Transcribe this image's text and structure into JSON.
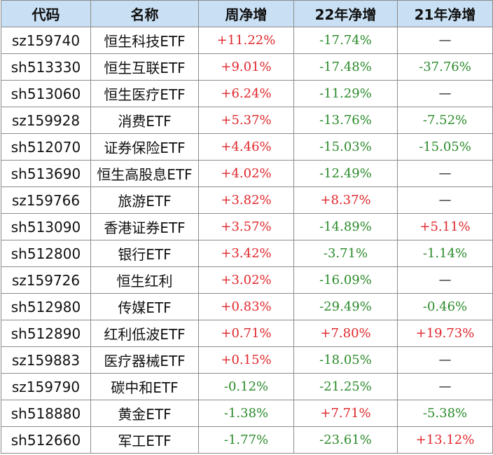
{
  "columns": [
    "代码",
    "名称",
    "周净增",
    "22年净增",
    "21年净增"
  ],
  "colors": {
    "positive": "#e0262b",
    "negative": "#2a8a2a",
    "header_bg": "#c9e0f4"
  },
  "rows": [
    {
      "code": "sz159740",
      "name": "恒生科技ETF",
      "week": "+11.22%",
      "y22": "-17.74%",
      "y21": "—"
    },
    {
      "code": "sh513330",
      "name": "恒生互联ETF",
      "week": "+9.01%",
      "y22": "-17.48%",
      "y21": "-37.76%"
    },
    {
      "code": "sh513060",
      "name": "恒生医疗ETF",
      "week": "+6.24%",
      "y22": "-11.29%",
      "y21": "—"
    },
    {
      "code": "sz159928",
      "name": "消费ETF",
      "week": "+5.37%",
      "y22": "-13.76%",
      "y21": "-7.52%"
    },
    {
      "code": "sh512070",
      "name": "证券保险ETF",
      "week": "+4.46%",
      "y22": "-15.03%",
      "y21": "-15.05%"
    },
    {
      "code": "sh513690",
      "name": "恒生高股息ETF",
      "week": "+4.02%",
      "y22": "-12.49%",
      "y21": "—"
    },
    {
      "code": "sz159766",
      "name": "旅游ETF",
      "week": "+3.82%",
      "y22": "+8.37%",
      "y21": "—"
    },
    {
      "code": "sh513090",
      "name": "香港证券ETF",
      "week": "+3.57%",
      "y22": "-14.89%",
      "y21": "+5.11%"
    },
    {
      "code": "sh512800",
      "name": "银行ETF",
      "week": "+3.42%",
      "y22": "-3.71%",
      "y21": "-1.14%"
    },
    {
      "code": "sz159726",
      "name": "恒生红利",
      "week": "+3.02%",
      "y22": "-16.09%",
      "y21": "—"
    },
    {
      "code": "sh512980",
      "name": "传媒ETF",
      "week": "+0.83%",
      "y22": "-29.49%",
      "y21": "-0.46%"
    },
    {
      "code": "sh512890",
      "name": "红利低波ETF",
      "week": "+0.71%",
      "y22": "+7.80%",
      "y21": "+19.73%"
    },
    {
      "code": "sz159883",
      "name": "医疗器械ETF",
      "week": "+0.15%",
      "y22": "-18.05%",
      "y21": "—"
    },
    {
      "code": "sz159790",
      "name": "碳中和ETF",
      "week": "-0.12%",
      "y22": "-21.25%",
      "y21": "—"
    },
    {
      "code": "sh518880",
      "name": "黄金ETF",
      "week": "-1.38%",
      "y22": "+7.71%",
      "y21": "-5.38%"
    },
    {
      "code": "sh512660",
      "name": "军工ETF",
      "week": "-1.77%",
      "y22": "-23.61%",
      "y21": "+13.12%"
    }
  ]
}
